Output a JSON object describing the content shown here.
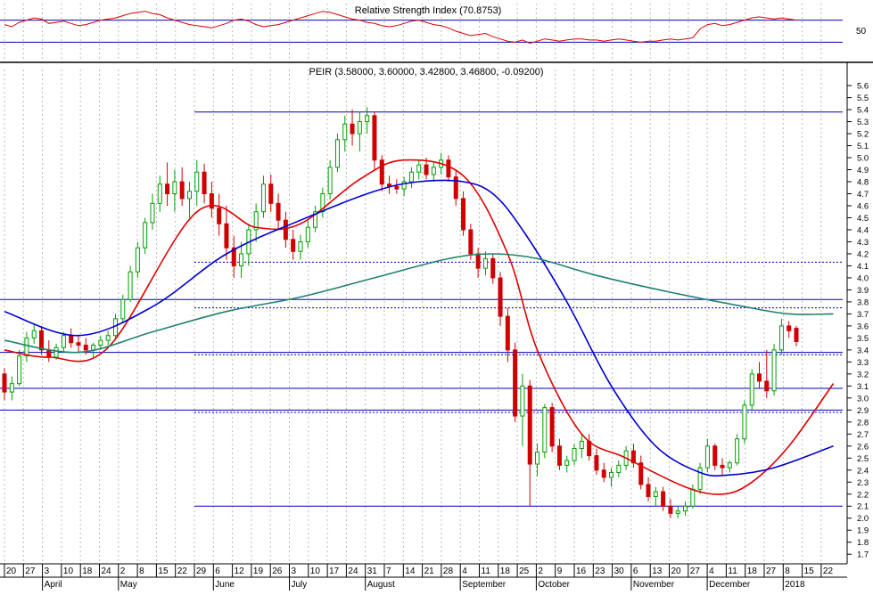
{
  "chart_data": {
    "type": "candlestick",
    "ticker_label": "PEIR (3.58000, 3.60000, 3.42800, 3.46800, -0.09200)",
    "rsi_label": "Relative Strength Index (70.8753)",
    "rsi_tick": "50",
    "rsi_ylim": [
      0,
      100
    ],
    "rsi_levels": [
      70,
      30
    ],
    "price_ylim": [
      1.62,
      5.66
    ],
    "y_ticks": [
      "1.7",
      "1.8",
      "1.9",
      "2.0",
      "2.1",
      "2.2",
      "2.3",
      "2.4",
      "2.5",
      "2.6",
      "2.7",
      "2.8",
      "2.9",
      "3.0",
      "3.1",
      "3.2",
      "3.3",
      "3.4",
      "3.5",
      "3.6",
      "3.7",
      "3.8",
      "3.9",
      "4.0",
      "4.1",
      "4.2",
      "4.3",
      "4.4",
      "4.5",
      "4.6",
      "4.7",
      "4.8",
      "4.9",
      "5.0",
      "5.1",
      "5.2",
      "5.3",
      "5.4",
      "5.5",
      "5.6"
    ],
    "x_ticks": [
      "20",
      "27",
      "3",
      "10",
      "18",
      "24",
      "2",
      "8",
      "15",
      "22",
      "29",
      "6",
      "12",
      "19",
      "26",
      "3",
      "10",
      "17",
      "24",
      "31",
      "7",
      "14",
      "21",
      "28",
      "4",
      "11",
      "18",
      "25",
      "2",
      "9",
      "16",
      "23",
      "30",
      "6",
      "13",
      "20",
      "27",
      "4",
      "11",
      "18",
      "27",
      "8",
      "15",
      "22"
    ],
    "months": [
      "April",
      "May",
      "June",
      "July",
      "August",
      "September",
      "October",
      "November",
      "December",
      "2018"
    ],
    "candles": {
      "up_color": "#00a000",
      "down_color": "#d00000",
      "ohlc": [
        [
          3.2,
          3.25,
          2.98,
          3.05
        ],
        [
          3.05,
          3.18,
          2.98,
          3.12
        ],
        [
          3.12,
          3.4,
          3.1,
          3.35
        ],
        [
          3.35,
          3.55,
          3.3,
          3.5
        ],
        [
          3.5,
          3.62,
          3.45,
          3.56
        ],
        [
          3.56,
          3.6,
          3.36,
          3.4
        ],
        [
          3.4,
          3.48,
          3.3,
          3.34
        ],
        [
          3.34,
          3.45,
          3.32,
          3.42
        ],
        [
          3.42,
          3.55,
          3.38,
          3.52
        ],
        [
          3.52,
          3.58,
          3.42,
          3.46
        ],
        [
          3.46,
          3.52,
          3.38,
          3.44
        ],
        [
          3.44,
          3.5,
          3.36,
          3.4
        ],
        [
          3.4,
          3.46,
          3.34,
          3.44
        ],
        [
          3.44,
          3.52,
          3.4,
          3.48
        ],
        [
          3.48,
          3.56,
          3.44,
          3.52
        ],
        [
          3.52,
          3.7,
          3.5,
          3.66
        ],
        [
          3.66,
          3.86,
          3.62,
          3.82
        ],
        [
          3.82,
          4.1,
          3.8,
          4.05
        ],
        [
          4.05,
          4.3,
          4.0,
          4.25
        ],
        [
          4.25,
          4.5,
          4.2,
          4.46
        ],
        [
          4.46,
          4.7,
          4.4,
          4.62
        ],
        [
          4.62,
          4.85,
          4.55,
          4.78
        ],
        [
          4.78,
          4.96,
          4.6,
          4.7
        ],
        [
          4.7,
          4.9,
          4.55,
          4.8
        ],
        [
          4.8,
          4.92,
          4.6,
          4.66
        ],
        [
          4.66,
          4.8,
          4.5,
          4.72
        ],
        [
          4.72,
          4.98,
          4.6,
          4.88
        ],
        [
          4.88,
          4.95,
          4.62,
          4.7
        ],
        [
          4.7,
          4.8,
          4.5,
          4.58
        ],
        [
          4.58,
          4.7,
          4.35,
          4.45
        ],
        [
          4.45,
          4.6,
          4.15,
          4.25
        ],
        [
          4.25,
          4.35,
          4.0,
          4.1
        ],
        [
          4.1,
          4.3,
          4.0,
          4.2
        ],
        [
          4.2,
          4.45,
          4.1,
          4.4
        ],
        [
          4.4,
          4.62,
          4.3,
          4.55
        ],
        [
          4.55,
          4.85,
          4.5,
          4.78
        ],
        [
          4.78,
          4.86,
          4.55,
          4.62
        ],
        [
          4.62,
          4.7,
          4.4,
          4.48
        ],
        [
          4.48,
          4.55,
          4.25,
          4.32
        ],
        [
          4.32,
          4.4,
          4.15,
          4.22
        ],
        [
          4.22,
          4.36,
          4.15,
          4.3
        ],
        [
          4.3,
          4.48,
          4.25,
          4.42
        ],
        [
          4.42,
          4.6,
          4.38,
          4.55
        ],
        [
          4.55,
          4.75,
          4.5,
          4.7
        ],
        [
          4.7,
          4.98,
          4.65,
          4.92
        ],
        [
          4.92,
          5.2,
          4.88,
          5.15
        ],
        [
          5.15,
          5.35,
          5.05,
          5.28
        ],
        [
          5.28,
          5.4,
          5.1,
          5.2
        ],
        [
          5.2,
          5.38,
          5.05,
          5.3
        ],
        [
          5.3,
          5.42,
          5.2,
          5.35
        ],
        [
          5.35,
          5.38,
          4.9,
          4.98
        ],
        [
          4.98,
          5.02,
          4.72,
          4.78
        ],
        [
          4.78,
          4.85,
          4.7,
          4.76
        ],
        [
          4.76,
          4.82,
          4.7,
          4.74
        ],
        [
          4.74,
          4.84,
          4.68,
          4.8
        ],
        [
          4.8,
          4.92,
          4.75,
          4.88
        ],
        [
          4.88,
          4.98,
          4.82,
          4.94
        ],
        [
          4.94,
          5.0,
          4.82,
          4.86
        ],
        [
          4.86,
          4.96,
          4.8,
          4.92
        ],
        [
          4.92,
          5.04,
          4.86,
          4.98
        ],
        [
          4.98,
          5.02,
          4.8,
          4.84
        ],
        [
          4.84,
          4.9,
          4.6,
          4.66
        ],
        [
          4.66,
          4.72,
          4.35,
          4.4
        ],
        [
          4.4,
          4.45,
          4.15,
          4.2
        ],
        [
          4.2,
          4.25,
          4.0,
          4.08
        ],
        [
          4.08,
          4.22,
          4.02,
          4.16
        ],
        [
          4.16,
          4.2,
          3.95,
          4.0
        ],
        [
          4.0,
          4.05,
          3.6,
          3.68
        ],
        [
          3.68,
          3.75,
          3.3,
          3.4
        ],
        [
          3.4,
          3.46,
          2.8,
          2.85
        ],
        [
          2.85,
          3.2,
          2.6,
          3.1
        ],
        [
          3.1,
          3.15,
          2.1,
          2.45
        ],
        [
          2.45,
          2.62,
          2.35,
          2.55
        ],
        [
          2.55,
          2.95,
          2.5,
          2.92
        ],
        [
          2.92,
          2.96,
          2.55,
          2.6
        ],
        [
          2.6,
          2.66,
          2.4,
          2.44
        ],
        [
          2.44,
          2.52,
          2.38,
          2.48
        ],
        [
          2.48,
          2.62,
          2.44,
          2.58
        ],
        [
          2.58,
          2.7,
          2.5,
          2.64
        ],
        [
          2.64,
          2.7,
          2.48,
          2.52
        ],
        [
          2.52,
          2.58,
          2.36,
          2.4
        ],
        [
          2.4,
          2.46,
          2.3,
          2.34
        ],
        [
          2.34,
          2.42,
          2.26,
          2.38
        ],
        [
          2.38,
          2.48,
          2.34,
          2.44
        ],
        [
          2.44,
          2.6,
          2.4,
          2.56
        ],
        [
          2.56,
          2.62,
          2.42,
          2.46
        ],
        [
          2.46,
          2.52,
          2.24,
          2.28
        ],
        [
          2.28,
          2.34,
          2.14,
          2.18
        ],
        [
          2.18,
          2.26,
          2.1,
          2.22
        ],
        [
          2.22,
          2.26,
          2.06,
          2.1
        ],
        [
          2.1,
          2.16,
          2.0,
          2.04
        ],
        [
          2.04,
          2.1,
          2.0,
          2.06
        ],
        [
          2.06,
          2.14,
          2.02,
          2.1
        ],
        [
          2.1,
          2.28,
          2.08,
          2.24
        ],
        [
          2.24,
          2.46,
          2.2,
          2.42
        ],
        [
          2.42,
          2.66,
          2.38,
          2.6
        ],
        [
          2.6,
          2.62,
          2.4,
          2.44
        ],
        [
          2.44,
          2.5,
          2.36,
          2.42
        ],
        [
          2.42,
          2.48,
          2.38,
          2.46
        ],
        [
          2.46,
          2.7,
          2.44,
          2.66
        ],
        [
          2.66,
          2.98,
          2.62,
          2.94
        ],
        [
          2.94,
          3.24,
          2.9,
          3.2
        ],
        [
          3.2,
          3.3,
          3.08,
          3.14
        ],
        [
          3.14,
          3.4,
          3.0,
          3.06
        ],
        [
          3.06,
          3.45,
          3.02,
          3.4
        ],
        [
          3.4,
          3.66,
          3.36,
          3.6
        ],
        [
          3.6,
          3.64,
          3.5,
          3.56
        ],
        [
          3.58,
          3.6,
          3.43,
          3.47
        ]
      ]
    },
    "series": [
      {
        "name": "MA fast",
        "color": "#e00000",
        "x": [
          0,
          6,
          14,
          26,
          34,
          40,
          48,
          54,
          62,
          68,
          72,
          78,
          84,
          92,
          97,
          101,
          106,
          112
        ],
        "values": [
          3.4,
          3.34,
          3.42,
          4.55,
          4.42,
          4.45,
          4.82,
          4.98,
          4.85,
          4.2,
          3.4,
          2.7,
          2.5,
          2.26,
          2.2,
          2.3,
          2.6,
          3.12
        ]
      },
      {
        "name": "MA medium",
        "color": "#0000d0",
        "x": [
          0,
          10,
          20,
          30,
          40,
          50,
          56,
          62,
          66,
          70,
          76,
          82,
          88,
          94,
          98,
          104,
          112
        ],
        "values": [
          3.72,
          3.52,
          3.76,
          4.2,
          4.48,
          4.72,
          4.8,
          4.8,
          4.7,
          4.4,
          3.8,
          3.1,
          2.6,
          2.38,
          2.36,
          2.42,
          2.6
        ]
      },
      {
        "name": "MA slow",
        "color": "#208070",
        "x": [
          0,
          10,
          20,
          30,
          40,
          50,
          60,
          66,
          72,
          80,
          90,
          100,
          106,
          112
        ],
        "values": [
          3.48,
          3.38,
          3.55,
          3.72,
          3.84,
          4.0,
          4.16,
          4.2,
          4.16,
          4.02,
          3.88,
          3.76,
          3.7,
          3.7
        ]
      }
    ],
    "rsi": [
      62,
      58,
      66,
      70,
      74,
      72,
      64,
      66,
      68,
      64,
      60,
      62,
      66,
      70,
      72,
      74,
      78,
      82,
      84,
      86,
      82,
      80,
      74,
      70,
      66,
      62,
      60,
      58,
      56,
      60,
      64,
      70,
      72,
      68,
      62,
      58,
      60,
      62,
      66,
      70,
      74,
      78,
      82,
      86,
      84,
      80,
      76,
      72,
      70,
      66,
      64,
      60,
      58,
      60,
      64,
      68,
      70,
      66,
      62,
      60,
      56,
      50,
      46,
      42,
      44,
      46,
      40,
      36,
      32,
      30,
      34,
      28,
      32,
      36,
      34,
      32,
      34,
      36,
      36,
      34,
      34,
      32,
      34,
      36,
      34,
      32,
      30,
      32,
      32,
      34,
      36,
      34,
      36,
      38,
      54,
      62,
      64,
      60,
      62,
      66,
      70,
      74,
      76,
      74,
      72,
      74,
      72,
      70
    ],
    "horizontal_lines": [
      5.38,
      3.82,
      3.38,
      3.08,
      2.9,
      2.1
    ],
    "dotted_lines": [
      4.13,
      3.75,
      3.36,
      2.88
    ]
  }
}
